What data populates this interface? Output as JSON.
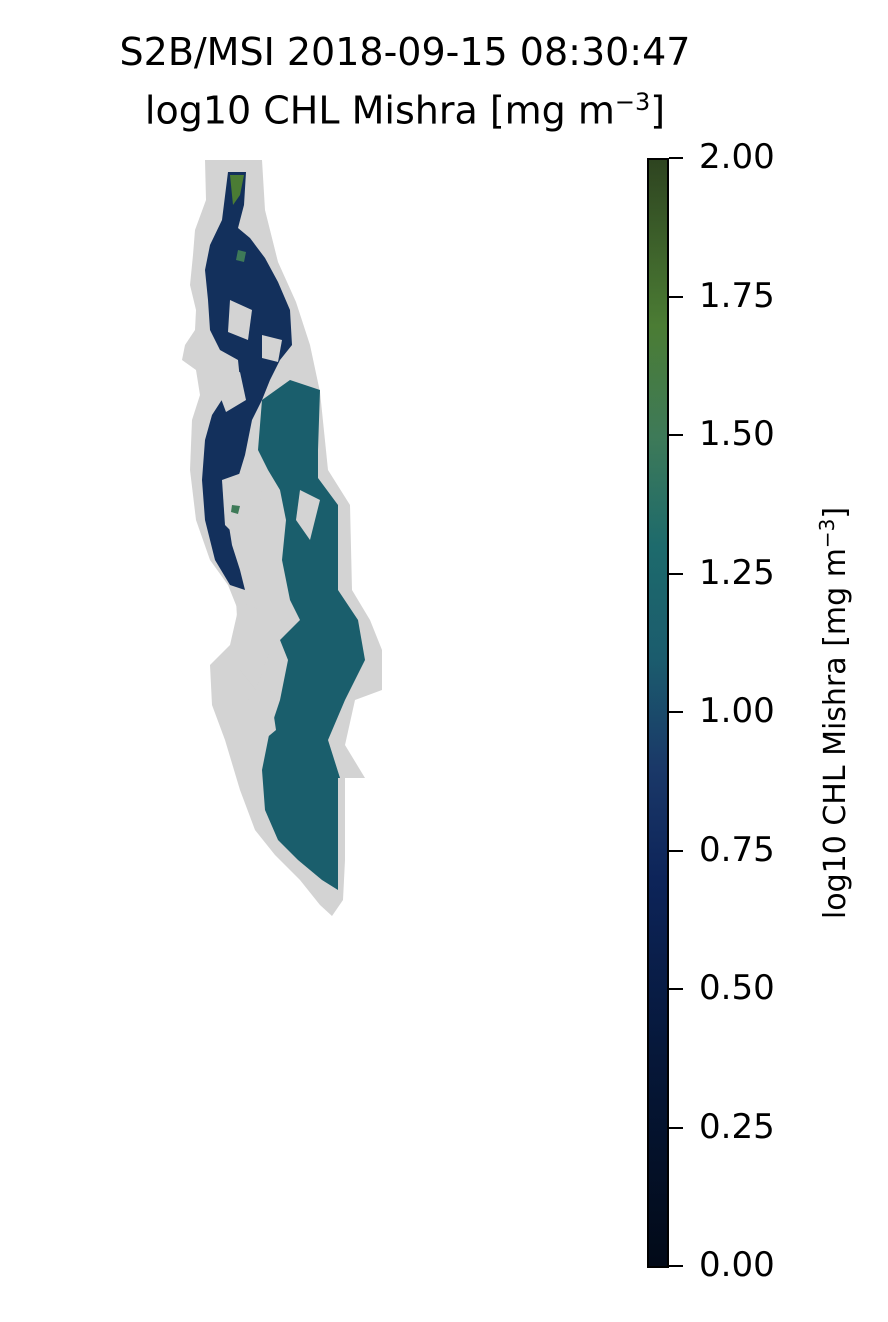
{
  "title": {
    "line1": "S2B/MSI 2018-09-15 08:30:47",
    "line2_prefix": "log10 CHL Mishra [mg m",
    "line2_sup": "−3",
    "line2_suffix": "]"
  },
  "colorbar": {
    "label_prefix": "log10 CHL Mishra [mg m",
    "label_sup": "−3",
    "label_suffix": "]",
    "range": [
      0.0,
      2.0
    ],
    "ticks": [
      "0.00",
      "0.25",
      "0.50",
      "0.75",
      "1.00",
      "1.25",
      "1.50",
      "1.75",
      "2.00"
    ],
    "colormap": [
      "#020a18",
      "#06183b",
      "#0d2459",
      "#1a3868",
      "#1b5c6d",
      "#1d6a6c",
      "#3e7a58",
      "#4b7c34",
      "#2e4420"
    ]
  },
  "map": {
    "land_mask_color": "#d3d3d3",
    "clear_water_color": "#1a5e6c",
    "low_chl_color": "#13305c"
  }
}
